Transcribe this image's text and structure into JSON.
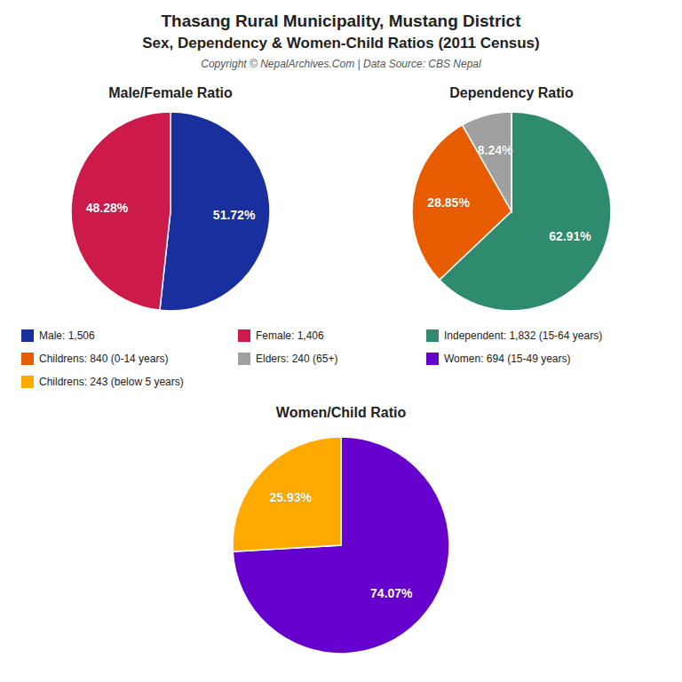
{
  "title": "Thasang Rural Municipality, Mustang District",
  "subtitle": "Sex, Dependency & Women-Child Ratios (2011 Census)",
  "annotations": [
    "Copyright © NepalArchives.Com | Data Source: CBS Nepal"
  ],
  "chart_data": [
    {
      "type": "pie",
      "title": "Male/Female Ratio",
      "categories": [
        "Male: 1,506",
        "Female: 1,406"
      ],
      "values": [
        51.72,
        48.28
      ],
      "value_labels": [
        "51.72%",
        "48.28%"
      ],
      "colors": [
        "#1a2f9e",
        "#cc1a4a"
      ],
      "data_labels": true
    },
    {
      "type": "pie",
      "title": "Dependency Ratio",
      "categories": [
        "Independent: 1,832 (15-64 years)",
        "Childrens: 840 (0-14 years)",
        "Elders: 240 (65+)"
      ],
      "values": [
        62.91,
        28.85,
        8.24
      ],
      "value_labels": [
        "62.91%",
        "28.85%",
        "8.24%"
      ],
      "colors": [
        "#2e8b6e",
        "#e85c00",
        "#a0a0a0"
      ],
      "data_labels": true
    },
    {
      "type": "pie",
      "title": "Women/Child Ratio",
      "categories": [
        "Women: 694 (15-49 years)",
        "Childrens: 243 (below 5 years)"
      ],
      "values": [
        74.07,
        25.93
      ],
      "value_labels": [
        "74.07%",
        "25.93%"
      ],
      "colors": [
        "#6600cc",
        "#ffaa00"
      ],
      "data_labels": true
    }
  ]
}
